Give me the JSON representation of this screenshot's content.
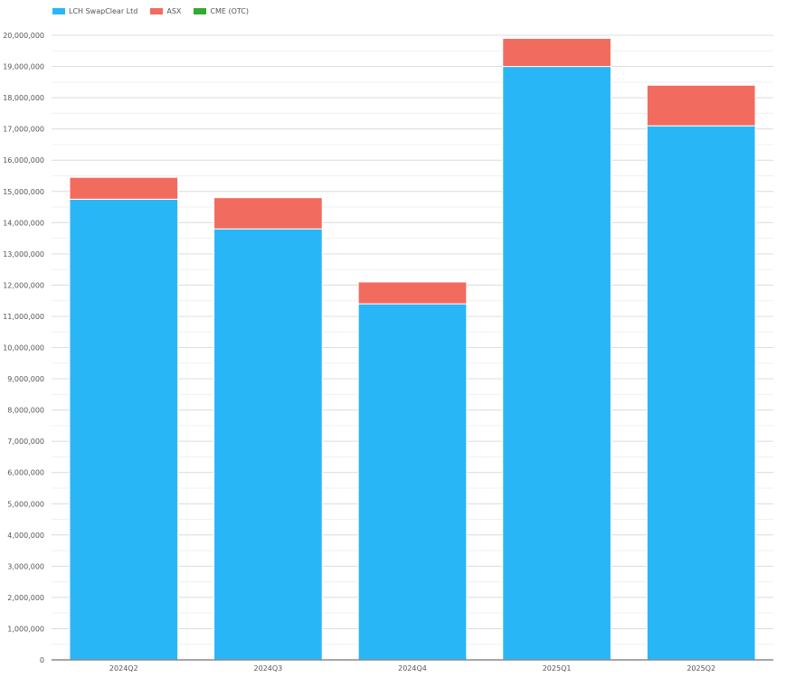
{
  "chart_data": {
    "type": "bar",
    "stacked": true,
    "categories": [
      "2024Q2",
      "2024Q3",
      "2024Q4",
      "2025Q1",
      "2025Q2"
    ],
    "series": [
      {
        "name": "LCH SwapClear Ltd",
        "color": "#29b6f6",
        "values": [
          14750000,
          13800000,
          11400000,
          19000000,
          17100000
        ]
      },
      {
        "name": "ASX",
        "color": "#f26b5f",
        "values": [
          700000,
          1000000,
          700000,
          900000,
          1300000
        ]
      },
      {
        "name": "CME (OTC)",
        "color": "#33aa33",
        "values": [
          0,
          0,
          0,
          0,
          0
        ]
      }
    ],
    "ylim": [
      0,
      20000000
    ],
    "y_ticks": [
      "0",
      "1,000,000",
      "2,000,000",
      "3,000,000",
      "4,000,000",
      "5,000,000",
      "6,000,000",
      "7,000,000",
      "8,000,000",
      "9,000,000",
      "10,000,000",
      "11,000,000",
      "12,000,000",
      "13,000,000",
      "14,000,000",
      "15,000,000",
      "16,000,000",
      "17,000,000",
      "18,000,000",
      "19,000,000",
      "20,000,000"
    ],
    "y_tick_values": [
      0,
      1000000,
      2000000,
      3000000,
      4000000,
      5000000,
      6000000,
      7000000,
      8000000,
      9000000,
      10000000,
      11000000,
      12000000,
      13000000,
      14000000,
      15000000,
      16000000,
      17000000,
      18000000,
      19000000,
      20000000
    ],
    "grid": true,
    "legend_position": "top-left"
  }
}
